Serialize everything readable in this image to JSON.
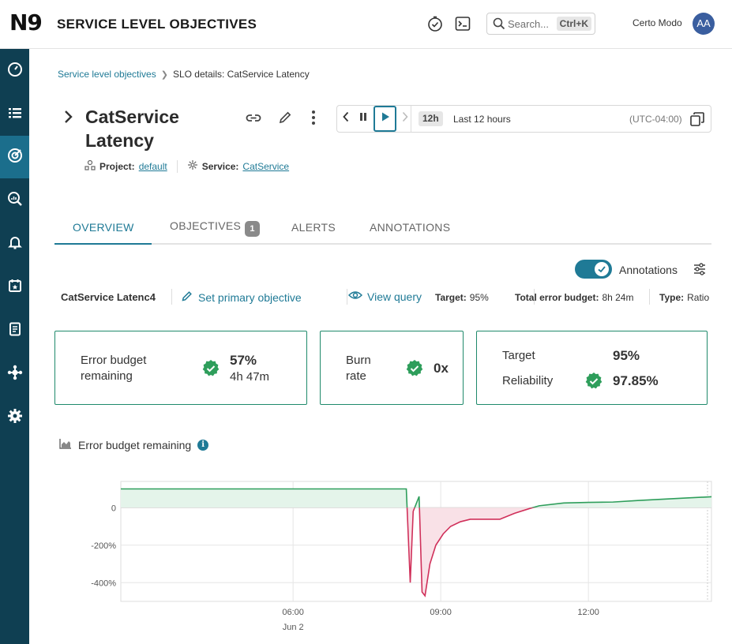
{
  "header": {
    "logo_text": "N9",
    "title": "SERVICE LEVEL OBJECTIVES",
    "search_placeholder": "Search...",
    "search_shortcut": "Ctrl+K",
    "user_name": "Certo Modo",
    "avatar_initials": "AA"
  },
  "sidebar": {
    "items": [
      {
        "icon": "dashboard-icon",
        "active": false
      },
      {
        "icon": "list-icon",
        "active": false
      },
      {
        "icon": "slo-target-icon",
        "active": true
      },
      {
        "icon": "query-search-icon",
        "active": false
      },
      {
        "icon": "bell-icon",
        "active": false
      },
      {
        "icon": "calendar-icon",
        "active": false
      },
      {
        "icon": "report-icon",
        "active": false
      },
      {
        "icon": "integrations-icon",
        "active": false
      },
      {
        "icon": "gear-icon",
        "active": false
      }
    ]
  },
  "breadcrumb": {
    "parent": "Service level objectives",
    "current": "SLO details: CatService Latency"
  },
  "slo": {
    "title": "CatService Latency",
    "project_label": "Project:",
    "project": "default",
    "service_label": "Service:",
    "service": "CatService"
  },
  "timebar": {
    "range_chip": "12h",
    "range_label": "Last 12 hours",
    "timezone": "(UTC-04:00)"
  },
  "tabs": [
    {
      "label": "OVERVIEW",
      "active": true
    },
    {
      "label": "OBJECTIVES",
      "badge": "1"
    },
    {
      "label": "ALERTS"
    },
    {
      "label": "ANNOTATIONS"
    }
  ],
  "annotations_toggle": {
    "label": "Annotations",
    "on": true
  },
  "objective": {
    "name": "CatService Latenc4",
    "set_primary": "Set primary objective",
    "view_query": "View query",
    "target_label": "Target:",
    "target": "95%",
    "budget_label": "Total error budget:",
    "budget": "8h 24m",
    "type_label": "Type:",
    "type": "Ratio"
  },
  "cards": {
    "error_budget": {
      "label_line1": "Error budget",
      "label_line2": "remaining",
      "value": "57%",
      "sub": "4h 47m"
    },
    "burn_rate": {
      "label_line1": "Burn",
      "label_line2": "rate",
      "value": "0x"
    },
    "target_rel": {
      "target_label": "Target",
      "target": "95%",
      "reliability_label": "Reliability",
      "reliability": "97.85%"
    }
  },
  "colors": {
    "accent": "#1f7a96",
    "good": "#2e9e5b",
    "bad": "#d0305a",
    "sidebar": "#0f3f52"
  },
  "chart_data": {
    "type": "line",
    "title": "Error budget remaining",
    "y_ticks": [
      "0",
      "-200%",
      "-400%"
    ],
    "x_ticks": [
      "06:00",
      "09:00",
      "12:00"
    ],
    "x_sub": "Jun 2",
    "ylim": [
      -500,
      140
    ],
    "xlim_hours": [
      2.5,
      14.5
    ],
    "series": [
      {
        "x": [
          2.5,
          8.3,
          8.38,
          8.44,
          8.56,
          8.62,
          8.68,
          8.78,
          8.9,
          9.05,
          9.2,
          9.4,
          9.6,
          10.0,
          10.2,
          10.5,
          10.8,
          11.0,
          11.5,
          12.0,
          12.5,
          13.0,
          13.5,
          14.0,
          14.5
        ],
        "y": [
          100,
          100,
          -400,
          -20,
          60,
          -450,
          -470,
          -300,
          -200,
          -140,
          -100,
          -75,
          -62,
          -62,
          -62,
          -30,
          -5,
          10,
          25,
          28,
          30,
          38,
          45,
          52,
          58
        ]
      }
    ]
  }
}
